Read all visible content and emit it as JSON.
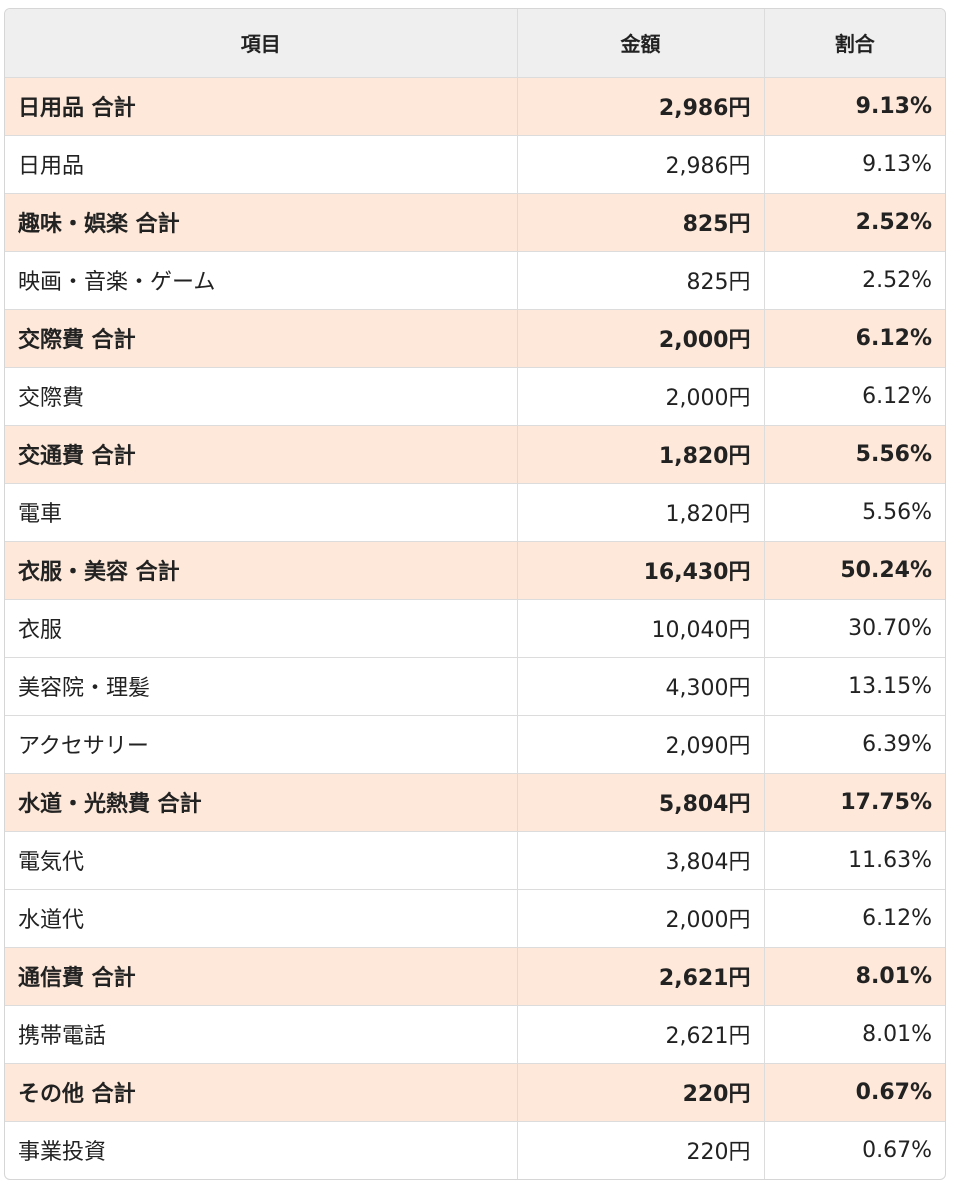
{
  "table": {
    "headers": {
      "item": "項目",
      "amount": "金額",
      "ratio": "割合"
    },
    "rows": [
      {
        "type": "subtotal",
        "item": "日用品 合計",
        "amount": "2,986円",
        "ratio": "9.13%"
      },
      {
        "type": "detail",
        "item": "日用品",
        "amount": "2,986円",
        "ratio": "9.13%"
      },
      {
        "type": "subtotal",
        "item": "趣味・娯楽 合計",
        "amount": "825円",
        "ratio": "2.52%"
      },
      {
        "type": "detail",
        "item": "映画・音楽・ゲーム",
        "amount": "825円",
        "ratio": "2.52%"
      },
      {
        "type": "subtotal",
        "item": "交際費 合計",
        "amount": "2,000円",
        "ratio": "6.12%"
      },
      {
        "type": "detail",
        "item": "交際費",
        "amount": "2,000円",
        "ratio": "6.12%"
      },
      {
        "type": "subtotal",
        "item": "交通費 合計",
        "amount": "1,820円",
        "ratio": "5.56%"
      },
      {
        "type": "detail",
        "item": "電車",
        "amount": "1,820円",
        "ratio": "5.56%"
      },
      {
        "type": "subtotal",
        "item": "衣服・美容 合計",
        "amount": "16,430円",
        "ratio": "50.24%"
      },
      {
        "type": "detail",
        "item": "衣服",
        "amount": "10,040円",
        "ratio": "30.70%"
      },
      {
        "type": "detail",
        "item": "美容院・理髪",
        "amount": "4,300円",
        "ratio": "13.15%"
      },
      {
        "type": "detail",
        "item": "アクセサリー",
        "amount": "2,090円",
        "ratio": "6.39%"
      },
      {
        "type": "subtotal",
        "item": "水道・光熱費 合計",
        "amount": "5,804円",
        "ratio": "17.75%"
      },
      {
        "type": "detail",
        "item": "電気代",
        "amount": "3,804円",
        "ratio": "11.63%"
      },
      {
        "type": "detail",
        "item": "水道代",
        "amount": "2,000円",
        "ratio": "6.12%"
      },
      {
        "type": "subtotal",
        "item": "通信費 合計",
        "amount": "2,621円",
        "ratio": "8.01%"
      },
      {
        "type": "detail",
        "item": "携帯電話",
        "amount": "2,621円",
        "ratio": "8.01%"
      },
      {
        "type": "subtotal",
        "item": "その他 合計",
        "amount": "220円",
        "ratio": "0.67%"
      },
      {
        "type": "detail",
        "item": "事業投資",
        "amount": "220円",
        "ratio": "0.67%"
      }
    ],
    "colors": {
      "header_bg": "#efefef",
      "subtotal_bg": "#fde8d9",
      "border": "#dcdcdc"
    }
  }
}
